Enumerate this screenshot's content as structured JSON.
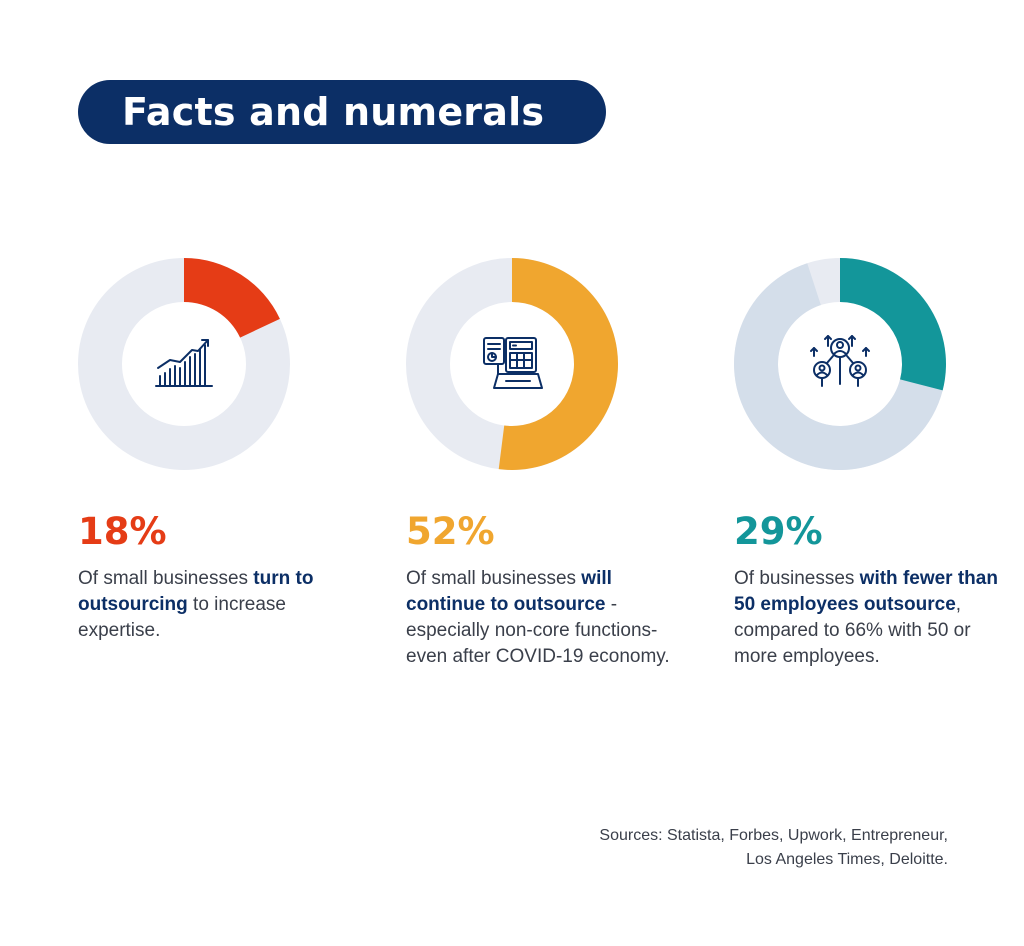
{
  "title": "Facts and numerals",
  "chart_data": [
    {
      "type": "pie",
      "value_percent": 18,
      "label": "18%",
      "accent": "#e53c16",
      "track": "#e8ebf2",
      "icon": "growth-chart-icon",
      "desc_parts": [
        {
          "text": "Of small businesses ",
          "bold": false
        },
        {
          "text": "turn to outsourcing",
          "bold": true
        },
        {
          "text": " to increase expertise.",
          "bold": false
        }
      ]
    },
    {
      "type": "pie",
      "value_percent": 52,
      "label": "52%",
      "accent": "#f0a62f",
      "track": "#e8ebf2",
      "icon": "calculator-documents-icon",
      "desc_parts": [
        {
          "text": "Of small businesses ",
          "bold": false
        },
        {
          "text": "will continue to outsource",
          "bold": true
        },
        {
          "text": " -especially non-core functions- even after COVID-19 economy.",
          "bold": false
        }
      ]
    },
    {
      "type": "pie",
      "value_percent": 29,
      "label": "29%",
      "accent": "#13969a",
      "track": "#d4deea",
      "secondary_percent": 66,
      "secondary_color": "#d4deea",
      "icon": "team-network-icon",
      "desc_parts": [
        {
          "text": "Of businesses ",
          "bold": false
        },
        {
          "text": "with fewer than 50 employees outsource",
          "bold": true
        },
        {
          "text": ", compared to 66% with 50 or more employees.",
          "bold": false
        }
      ]
    }
  ],
  "sources": {
    "line1": "Sources: Statista, Forbes, Upwork, Entrepreneur,",
    "line2": "Los Angeles Times, Deloitte."
  },
  "colors": {
    "navy": "#0c2f66",
    "text": "#3a3f4a",
    "track_light": "#e8ebf2",
    "track_third_gap": "#e8ebf2"
  }
}
